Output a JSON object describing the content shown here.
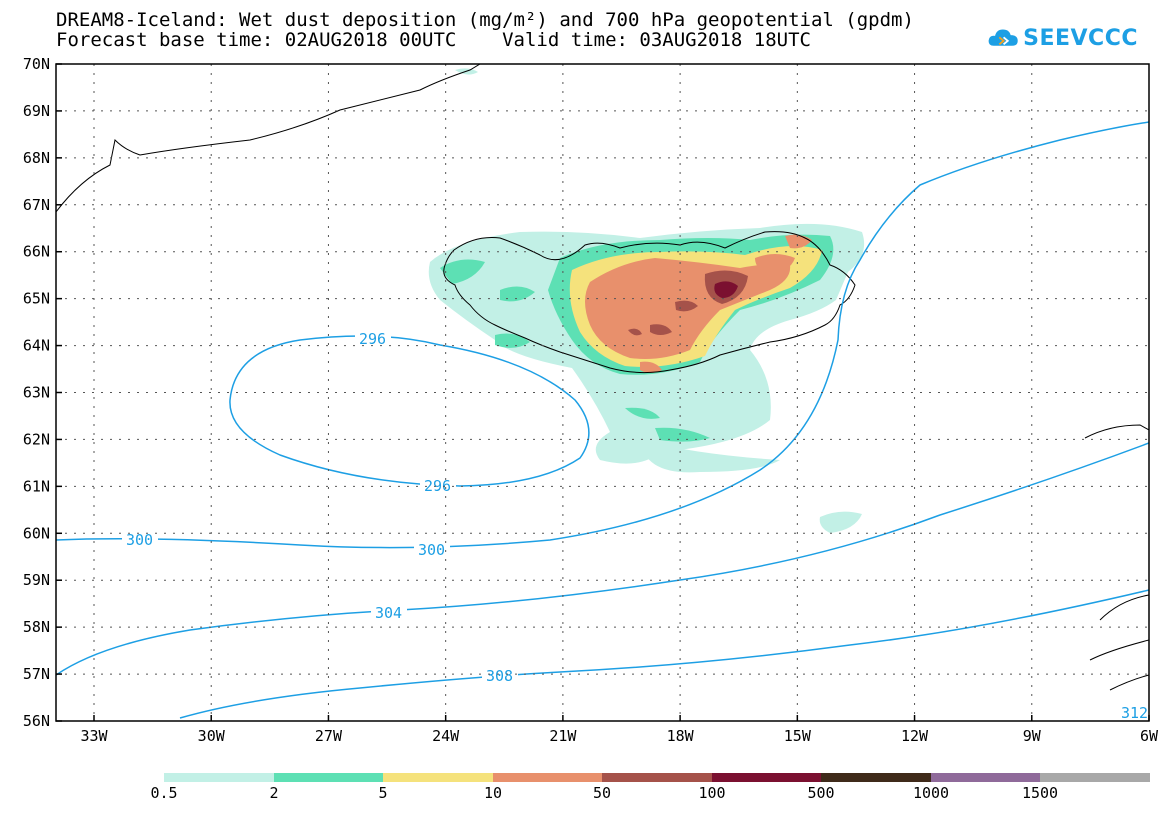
{
  "title": {
    "line1": "DREAM8-Iceland: Wet dust deposition (mg/m²) and 700 hPa geopotential (gpdm)",
    "line2": "Forecast base time: 02AUG2018 00UTC    Valid time: 03AUG2018 18UTC"
  },
  "logo": {
    "text": "SEEVCCC",
    "icon": "cloud-icon"
  },
  "axes": {
    "lat_labels": [
      "70N",
      "69N",
      "68N",
      "67N",
      "66N",
      "65N",
      "64N",
      "63N",
      "62N",
      "61N",
      "60N",
      "59N",
      "58N",
      "57N",
      "56N"
    ],
    "lon_labels": [
      "33W",
      "30W",
      "27W",
      "24W",
      "21W",
      "18W",
      "15W",
      "12W",
      "9W",
      "6W"
    ]
  },
  "contours": {
    "color": "#1d9fe4",
    "labels": [
      {
        "text": "296"
      },
      {
        "text": "296"
      },
      {
        "text": "300"
      },
      {
        "text": "300"
      },
      {
        "text": "304"
      },
      {
        "text": "308"
      },
      {
        "text": "312"
      }
    ]
  },
  "legend": {
    "colors": [
      "#c2f0e6",
      "#5de0b4",
      "#f5e27c",
      "#e8906c",
      "#a5524a",
      "#7b1030",
      "#3f2a1a",
      "#8f6a9a",
      "#a8a8a8"
    ],
    "ticks": [
      "0.5",
      "2",
      "5",
      "10",
      "50",
      "100",
      "500",
      "1000",
      "1500"
    ]
  }
}
